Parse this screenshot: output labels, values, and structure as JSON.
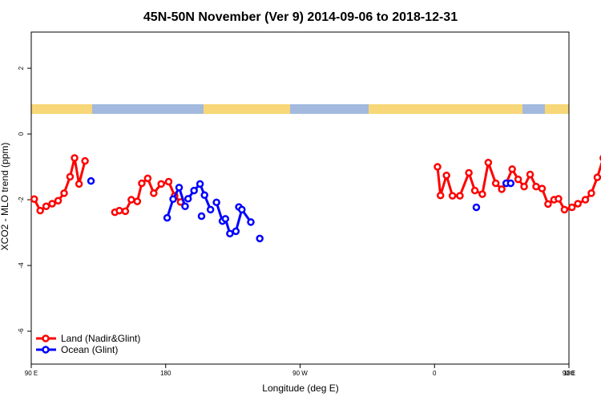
{
  "chart_data": {
    "type": "line",
    "title": "45N-50N November (Ver 9)   2014-09-06 to 2018-12-31",
    "xlabel": "Longitude (deg E)",
    "ylabel": "XCO2 - MLO trend (ppm)",
    "xlim": [
      90,
      450
    ],
    "ylim": [
      -7,
      3.1
    ],
    "x_ticks": [
      {
        "value": 90,
        "label": "90 E"
      },
      {
        "value": 180,
        "label": "180"
      },
      {
        "value": 270,
        "label": "90 W"
      },
      {
        "value": 360,
        "label": "0"
      },
      {
        "value": 450,
        "label": "90 E"
      }
    ],
    "x_minor_ticks": [
      450
    ],
    "x_end_label": "180",
    "y_ticks": [
      {
        "value": 2,
        "label": "2"
      },
      {
        "value": 0,
        "label": "0"
      },
      {
        "value": -2,
        "label": "-2"
      },
      {
        "value": -4,
        "label": "-4"
      },
      {
        "value": -6,
        "label": "-6"
      }
    ],
    "legend_position": "bottom-left",
    "series": [
      {
        "name": "Land (Nadir&Glint)",
        "color": "#ff0000",
        "segments": [
          [
            [
              92,
              -1.98
            ],
            [
              96,
              -2.33
            ],
            [
              100,
              -2.2
            ],
            [
              104,
              -2.12
            ],
            [
              108,
              -2.03
            ],
            [
              112,
              -1.8
            ],
            [
              116,
              -1.3
            ],
            [
              119,
              -0.73
            ],
            [
              122,
              -1.52
            ],
            [
              126,
              -0.82
            ]
          ],
          [
            [
              146,
              -2.38
            ],
            [
              149,
              -2.33
            ],
            [
              153,
              -2.35
            ],
            [
              157,
              -2.0
            ],
            [
              161,
              -2.05
            ],
            [
              164,
              -1.5
            ],
            [
              168,
              -1.35
            ],
            [
              172,
              -1.8
            ],
            [
              177,
              -1.52
            ],
            [
              182,
              -1.45
            ],
            [
              186,
              -1.88
            ],
            [
              190,
              -2.07
            ]
          ],
          [
            [
              362,
              -1.0
            ],
            [
              364,
              -1.87
            ],
            [
              368,
              -1.26
            ],
            [
              372,
              -1.88
            ],
            [
              377,
              -1.88
            ],
            [
              383,
              -1.18
            ],
            [
              387,
              -1.72
            ],
            [
              392,
              -1.83
            ],
            [
              396,
              -0.87
            ],
            [
              401,
              -1.5
            ],
            [
              405,
              -1.68
            ],
            [
              408,
              -1.5
            ],
            [
              412,
              -1.07
            ],
            [
              416,
              -1.38
            ],
            [
              420,
              -1.6
            ],
            [
              424,
              -1.23
            ],
            [
              428,
              -1.6
            ],
            [
              432,
              -1.66
            ],
            [
              436,
              -2.13
            ],
            [
              440,
              -2.0
            ],
            [
              443,
              -1.97
            ],
            [
              447,
              -2.3
            ],
            [
              452,
              -2.23
            ],
            [
              456,
              -2.12
            ],
            [
              461,
              -2.0
            ],
            [
              465,
              -1.8
            ],
            [
              469,
              -1.32
            ],
            [
              473,
              -0.73
            ],
            [
              477,
              -1.52
            ],
            [
              481,
              -0.82
            ]
          ]
        ]
      },
      {
        "name": "Ocean (Glint)",
        "color": "#0000ff",
        "segments": [
          [
            [
              130,
              -1.43
            ]
          ],
          [
            [
              181,
              -2.55
            ],
            [
              185,
              -1.98
            ],
            [
              189,
              -1.63
            ],
            [
              193,
              -2.2
            ]
          ],
          [
            [
              204,
              -2.5
            ]
          ],
          [
            [
              214,
              -2.08
            ],
            [
              218,
              -2.65
            ]
          ],
          [
            [
              229,
              -2.22
            ]
          ],
          [
            [
              195,
              -1.97
            ],
            [
              199,
              -1.72
            ],
            [
              203,
              -1.52
            ],
            [
              206,
              -1.86
            ],
            [
              210,
              -2.3
            ]
          ],
          [
            [
              220,
              -2.58
            ],
            [
              223,
              -3.03
            ],
            [
              227,
              -2.96
            ],
            [
              231,
              -2.3
            ],
            [
              237,
              -2.68
            ]
          ],
          [
            [
              243,
              -3.18
            ]
          ],
          [
            [
              388,
              -2.23
            ]
          ],
          [
            [
              408,
              -1.5
            ],
            [
              411,
              -1.5
            ]
          ],
          [
            [
              484,
              -1.42
            ]
          ]
        ]
      }
    ]
  }
}
